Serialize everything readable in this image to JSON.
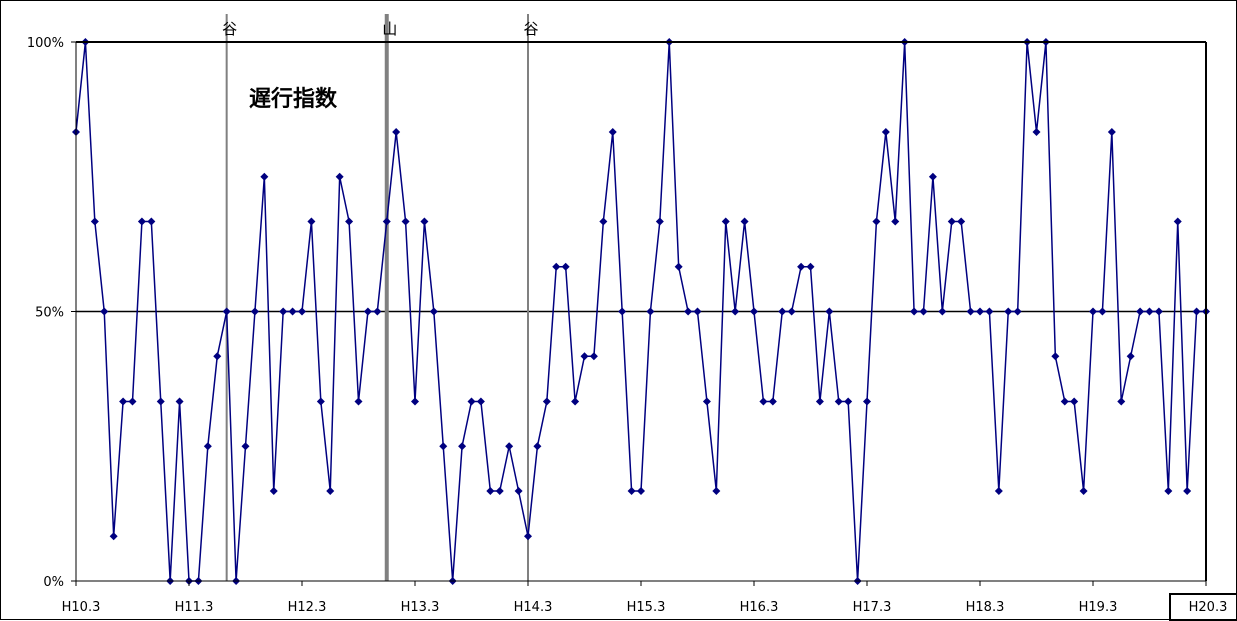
{
  "chart_data": {
    "type": "line",
    "title": "遅行指数",
    "xlabel": "",
    "ylabel": "",
    "ylim": [
      0,
      100
    ],
    "y_ticks": [
      "0%",
      "50%",
      "100%"
    ],
    "x_ticks": [
      "H10.3",
      "H11.3",
      "H12.3",
      "H13.3",
      "H14.3",
      "H15.3",
      "H16.3",
      "H17.3",
      "H18.3",
      "H19.3",
      "H20.3"
    ],
    "x_tick_highlight": "H20.3",
    "grid": false,
    "markers": [
      {
        "label": "谷",
        "index": 16
      },
      {
        "label": "山",
        "index": 33
      },
      {
        "label": "谷",
        "index": 48
      }
    ],
    "colors": {
      "series": "#000080",
      "marker_line": "#808080",
      "axis": "#000000"
    },
    "series": [
      {
        "name": "",
        "x_start": "H10.3",
        "values": [
          83.3,
          100,
          66.7,
          50,
          8.3,
          33.3,
          33.3,
          66.7,
          66.7,
          33.3,
          0,
          33.3,
          0,
          0,
          25,
          41.7,
          50,
          0,
          25,
          50,
          75,
          16.7,
          50,
          50,
          50,
          66.7,
          33.3,
          16.7,
          75,
          66.7,
          33.3,
          50,
          50,
          66.7,
          83.3,
          66.7,
          33.3,
          66.7,
          50,
          25,
          0,
          25,
          33.3,
          33.3,
          16.7,
          16.7,
          25,
          16.7,
          8.3,
          25,
          33.3,
          58.3,
          58.3,
          33.3,
          41.7,
          41.7,
          66.7,
          83.3,
          50,
          16.7,
          16.7,
          50,
          66.7,
          100,
          58.3,
          50,
          50,
          33.3,
          16.7,
          66.7,
          50,
          66.7,
          50,
          33.3,
          33.3,
          50,
          50,
          58.3,
          58.3,
          33.3,
          50,
          33.3,
          33.3,
          0,
          33.3,
          66.7,
          83.3,
          66.7,
          100,
          50,
          50,
          75,
          50,
          66.7,
          66.7,
          50,
          50,
          50,
          16.7,
          50,
          50,
          100,
          83.3,
          100,
          41.7,
          33.3,
          33.3,
          16.7,
          50,
          50,
          83.3,
          33.3,
          41.7,
          50,
          50,
          50,
          16.7,
          66.7,
          16.7,
          50,
          50
        ]
      }
    ]
  }
}
